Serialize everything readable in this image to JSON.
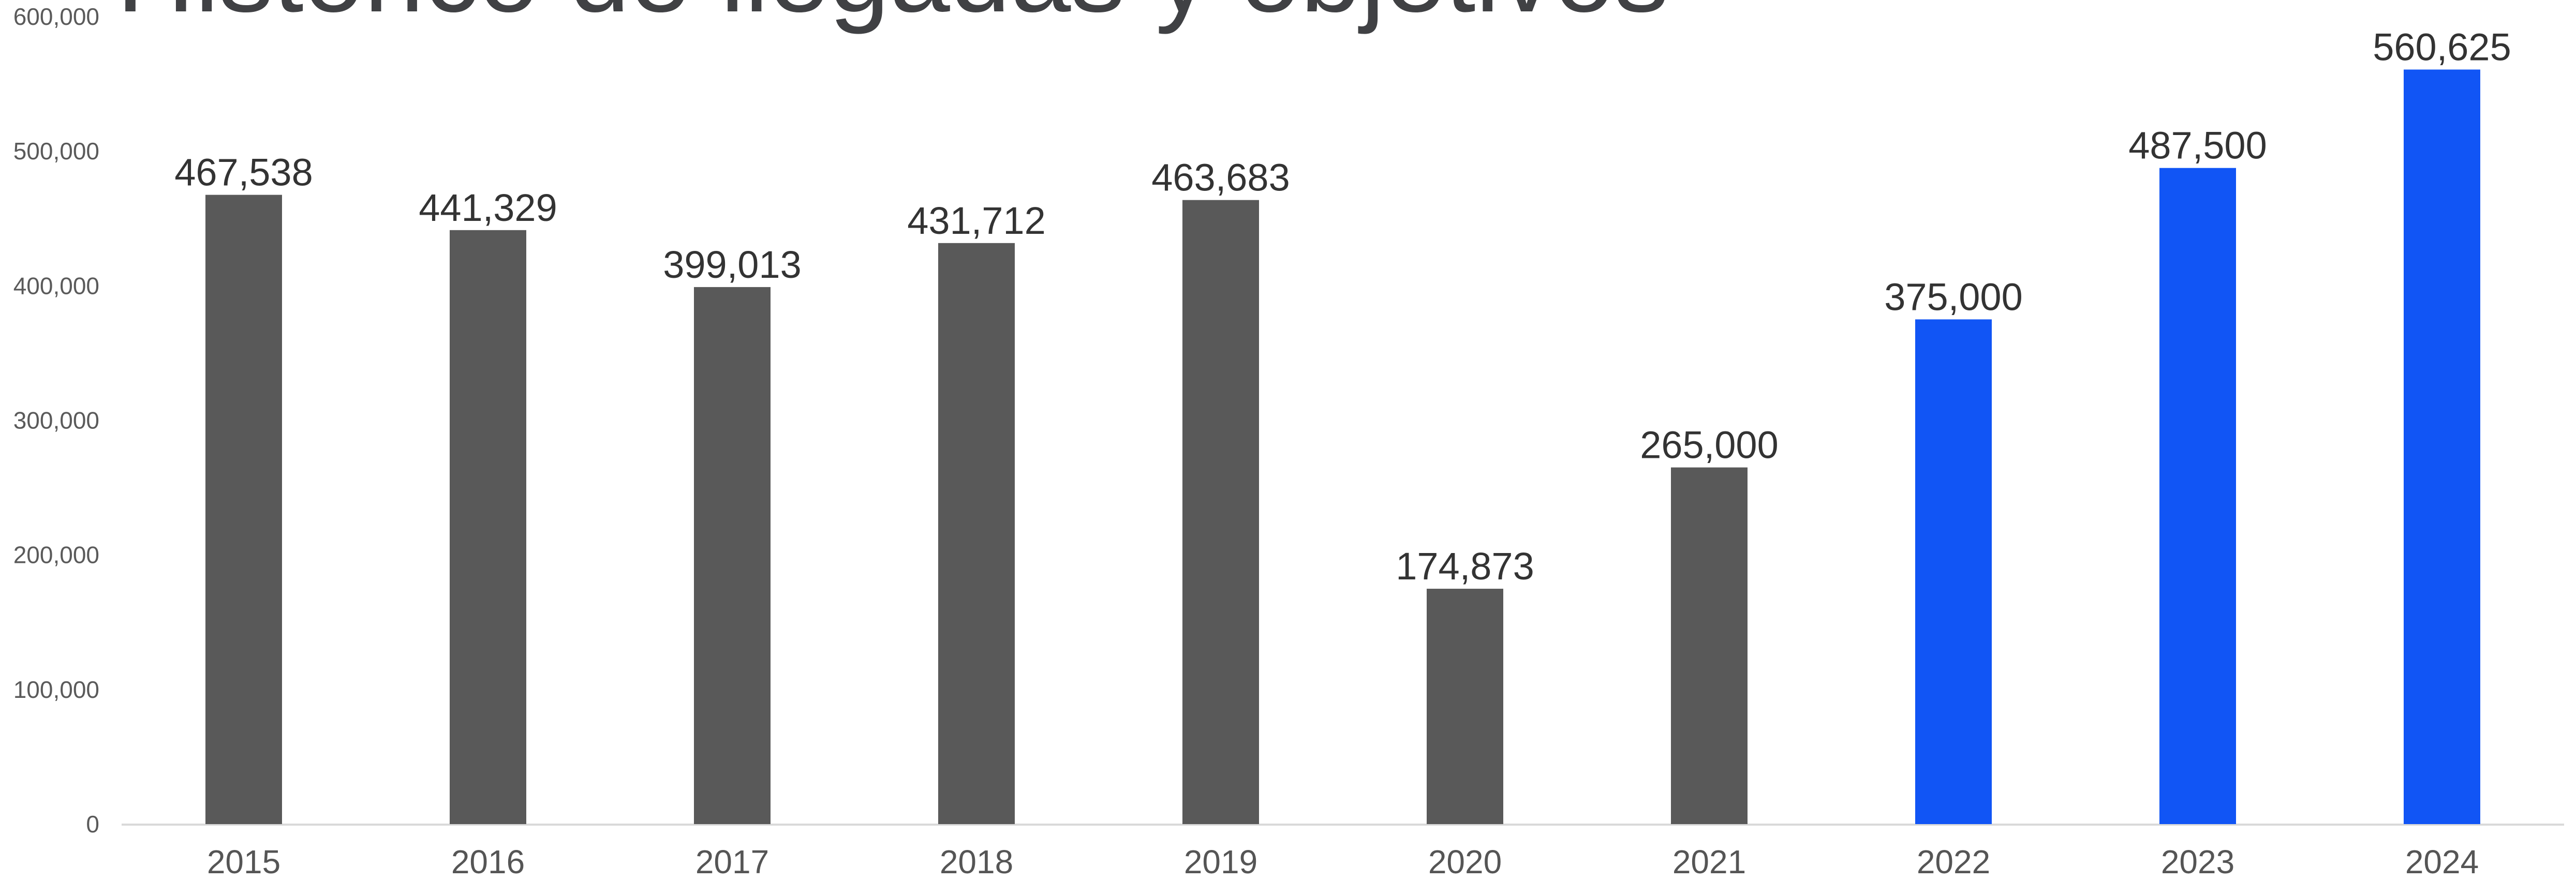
{
  "chart_data": {
    "type": "bar",
    "title": "Histórico de llegadas y objetivos",
    "xlabel": "",
    "ylabel": "",
    "categories": [
      "2015",
      "2016",
      "2017",
      "2018",
      "2019",
      "2020",
      "2021",
      "2022",
      "2023",
      "2024"
    ],
    "values": [
      467538,
      441329,
      399013,
      431712,
      463683,
      174873,
      265000,
      375000,
      487500,
      560625
    ],
    "data_labels": [
      "467,538",
      "441,329",
      "399,013",
      "431,712",
      "463,683",
      "174,873",
      "265,000",
      "375,000",
      "487,500",
      "560,625"
    ],
    "bar_colors": [
      "#595959",
      "#595959",
      "#595959",
      "#595959",
      "#595959",
      "#595959",
      "#595959",
      "#1155F5",
      "#1155F5",
      "#1155F5"
    ],
    "ylim": [
      0,
      600000
    ],
    "yticks": [
      0,
      100000,
      200000,
      300000,
      400000,
      500000,
      600000
    ],
    "ytick_labels": [
      "0",
      "100,000",
      "200,000",
      "300,000",
      "400,000",
      "500,000",
      "600,000"
    ],
    "grid": false,
    "legend": "none",
    "axis_color": "#D9D9D9"
  }
}
